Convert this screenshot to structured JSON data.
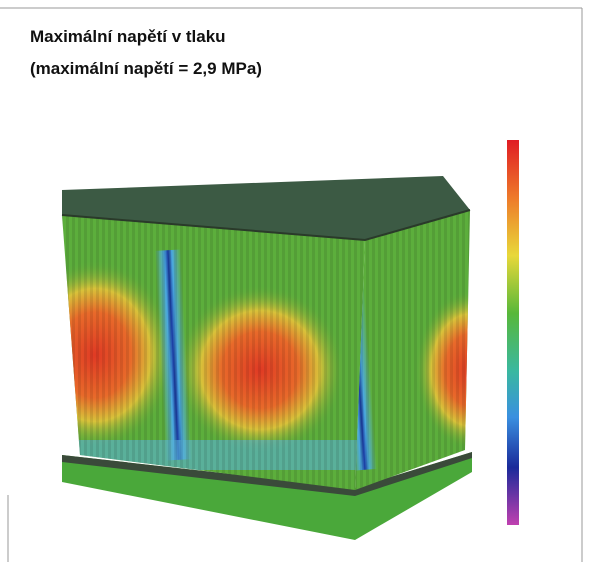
{
  "header": {
    "title_lines": [
      "Maximální napětí v tlaku",
      "(maximální napětí = 2,9 MPa)"
    ]
  }
}
